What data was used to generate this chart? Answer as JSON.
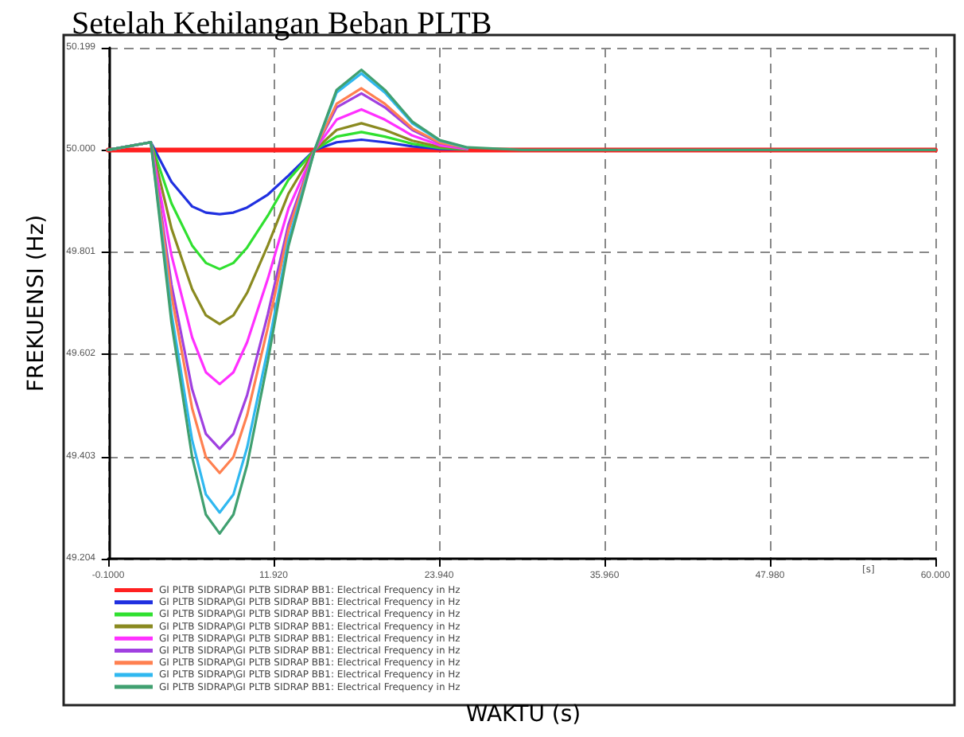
{
  "chart_data": {
    "type": "line",
    "title": "Setelah Kehilangan Beban PLTB",
    "ylabel": "FREKUENSI (Hz)",
    "xlim": [
      -0.1,
      60
    ],
    "xticks": [
      {
        "value": -0.1,
        "label": "-0.1000"
      },
      {
        "value": 11.92,
        "label": "11.920"
      },
      {
        "value": 23.94,
        "label": "23.940"
      },
      {
        "value": 35.96,
        "label": "35.960"
      },
      {
        "value": 47.98,
        "label": "47.980"
      },
      {
        "value": 60,
        "label": "60.000"
      }
    ],
    "ylim": [
      49.204,
      50.199
    ],
    "yticks": [
      {
        "value": 49.204,
        "label": "49.204"
      },
      {
        "value": 49.403,
        "label": "49.403"
      },
      {
        "value": 49.602,
        "label": "49.602"
      },
      {
        "value": 49.801,
        "label": "49.801"
      },
      {
        "value": 50,
        "label": "50.000"
      },
      {
        "value": 50.199,
        "label": "50.199"
      }
    ],
    "annotations": [
      "[s]",
      "WAKTU (s)"
    ],
    "grid": true,
    "legend": "bottom",
    "marker": "none",
    "series": [
      {
        "name": "GI PLTB SIDRAP\\GI PLTB SIDRAP BB1: Electrical Frequency in Hz",
        "color": "#ff2020",
        "x": [
          -0.1,
          60
        ],
        "values": [
          50.0,
          50.0
        ]
      },
      {
        "name": "GI PLTB SIDRAP\\GI PLTB SIDRAP BB1: Electrical Frequency in Hz",
        "color": "#2030e0",
        "x": [
          -0.1,
          3,
          4.5,
          6,
          7,
          8,
          9,
          10,
          11.5,
          13,
          14.9,
          16.5,
          18.3,
          20,
          22,
          24,
          26
        ],
        "values": [
          50.0,
          50.015,
          49.938,
          49.89,
          49.878,
          49.875,
          49.878,
          49.888,
          49.913,
          49.95,
          50.0,
          50.015,
          50.02,
          50.015,
          50.007,
          50.002,
          50.001
        ]
      },
      {
        "name": "GI PLTB SIDRAP\\GI PLTB SIDRAP BB1: Electrical Frequency in Hz",
        "color": "#30e030",
        "x": [
          -0.1,
          3,
          4.5,
          6,
          7,
          8,
          9,
          10,
          11.5,
          13,
          14.9,
          16.5,
          18.3,
          20,
          22,
          24,
          26
        ],
        "values": [
          50.0,
          50.015,
          49.896,
          49.814,
          49.78,
          49.768,
          49.78,
          49.81,
          49.872,
          49.942,
          50.0,
          50.026,
          50.035,
          50.026,
          50.012,
          50.004,
          50.001
        ]
      },
      {
        "name": "GI PLTB SIDRAP\\GI PLTB SIDRAP BB1: Electrical Frequency in Hz",
        "color": "#8a8a20",
        "x": [
          -0.1,
          3,
          4.5,
          6,
          7,
          8,
          9,
          10,
          11.5,
          13,
          14.9,
          16.5,
          18.3,
          20,
          22,
          24,
          26
        ],
        "values": [
          50.0,
          50.015,
          49.847,
          49.729,
          49.678,
          49.661,
          49.678,
          49.722,
          49.814,
          49.915,
          50.0,
          50.039,
          50.052,
          50.039,
          50.018,
          50.006,
          50.002
        ]
      },
      {
        "name": "GI PLTB SIDRAP\\GI PLTB SIDRAP BB1: Electrical Frequency in Hz",
        "color": "#ff30ff",
        "x": [
          -0.1,
          3,
          4.5,
          6,
          7,
          8,
          9,
          10,
          11.5,
          13,
          14.9,
          16.5,
          18.3,
          20,
          22,
          24,
          26
        ],
        "values": [
          50.0,
          50.015,
          49.795,
          49.635,
          49.567,
          49.544,
          49.567,
          49.626,
          49.749,
          49.886,
          50.0,
          50.059,
          50.079,
          50.059,
          50.028,
          50.009,
          50.002
        ]
      },
      {
        "name": "GI PLTB SIDRAP\\GI PLTB SIDRAP BB1: Electrical Frequency in Hz",
        "color": "#a040e0",
        "x": [
          -0.1,
          3,
          4.5,
          6,
          7,
          8,
          9,
          10,
          11.5,
          13,
          14.9,
          16.5,
          18.3,
          20,
          22,
          24,
          26
        ],
        "values": [
          50.0,
          50.015,
          49.738,
          49.534,
          49.447,
          49.418,
          49.447,
          49.523,
          49.68,
          49.855,
          50.0,
          50.083,
          50.11,
          50.083,
          50.039,
          50.013,
          50.003
        ]
      },
      {
        "name": "GI PLTB SIDRAP\\GI PLTB SIDRAP BB1: Electrical Frequency in Hz",
        "color": "#ff8050",
        "x": [
          -0.1,
          3,
          4.5,
          6,
          7,
          8,
          9,
          10,
          11.5,
          13,
          14.9,
          16.5,
          18.3,
          20,
          22,
          24,
          26
        ],
        "values": [
          50.0,
          50.015,
          49.717,
          49.497,
          49.402,
          49.371,
          49.402,
          49.484,
          49.654,
          49.843,
          50.0,
          50.09,
          50.12,
          50.09,
          50.042,
          50.014,
          50.004
        ]
      },
      {
        "name": "GI PLTB SIDRAP\\GI PLTB SIDRAP BB1: Electrical Frequency in Hz",
        "color": "#30b8f0",
        "x": [
          -0.1,
          3,
          4.5,
          6,
          7,
          8,
          9,
          10,
          11.5,
          13,
          14.9,
          16.5,
          18.3,
          20,
          22,
          24,
          26
        ],
        "values": [
          50.0,
          50.015,
          49.682,
          49.435,
          49.329,
          49.294,
          49.329,
          49.421,
          49.612,
          49.824,
          50.0,
          50.112,
          50.149,
          50.112,
          50.052,
          50.018,
          50.004
        ]
      },
      {
        "name": "GI PLTB SIDRAP\\GI PLTB SIDRAP BB1: Electrical Frequency in Hz",
        "color": "#40a070",
        "x": [
          -0.1,
          3,
          4.5,
          6,
          7,
          8,
          9,
          10,
          11.5,
          13,
          14.9,
          16.5,
          18.3,
          20,
          22,
          24,
          26,
          30,
          60
        ],
        "values": [
          50.0,
          50.015,
          49.664,
          49.402,
          49.29,
          49.253,
          49.29,
          49.387,
          49.589,
          49.813,
          50.0,
          50.117,
          50.156,
          50.117,
          50.055,
          50.019,
          50.005,
          50.0,
          50.0
        ]
      }
    ]
  }
}
